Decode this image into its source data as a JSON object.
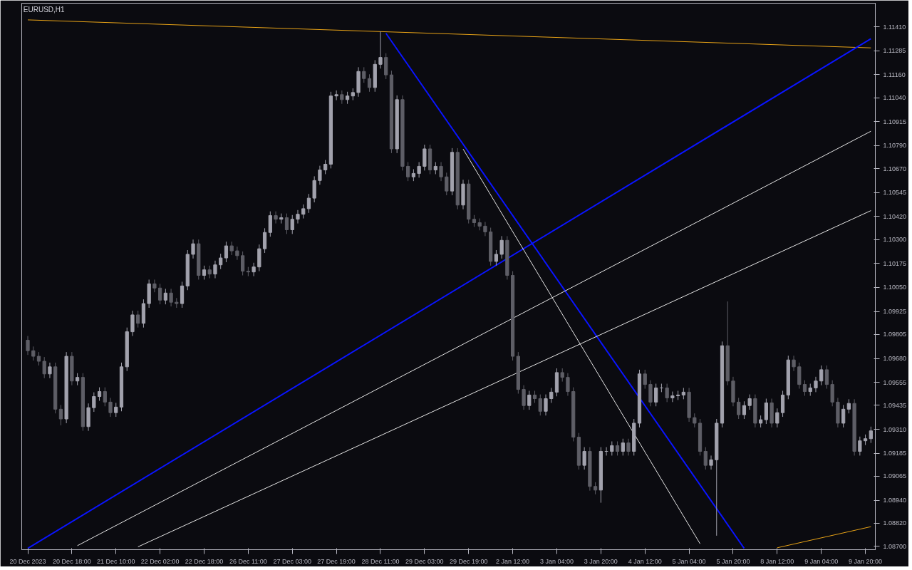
{
  "chart_data": {
    "type": "candlestick",
    "title": "EURUSD,H1",
    "categories": [
      "20 Dec 2023",
      null,
      null,
      null,
      null,
      null,
      null,
      null,
      "20 Dec 18:00",
      null,
      null,
      null,
      null,
      null,
      null,
      null,
      "21 Dec 10:00",
      null,
      null,
      null,
      null,
      null,
      null,
      null,
      "22 Dec 02:00",
      null,
      null,
      null,
      null,
      null,
      null,
      null,
      "22 Dec 18:00",
      null,
      null,
      null,
      null,
      null,
      null,
      null,
      "26 Dec 11:00",
      null,
      null,
      null,
      null,
      null,
      null,
      null,
      "27 Dec 03:00",
      null,
      null,
      null,
      null,
      null,
      null,
      null,
      "27 Dec 19:00",
      null,
      null,
      null,
      null,
      null,
      null,
      null,
      "28 Dec 11:00",
      null,
      null,
      null,
      null,
      null,
      null,
      null,
      "29 Dec 03:00",
      null,
      null,
      null,
      null,
      null,
      null,
      null,
      "29 Dec 19:00",
      null,
      null,
      null,
      null,
      null,
      null,
      null,
      "2 Jan 12:00",
      null,
      null,
      null,
      null,
      null,
      null,
      null,
      "3 Jan 04:00",
      null,
      null,
      null,
      null,
      null,
      null,
      null,
      "3 Jan 20:00",
      null,
      null,
      null,
      null,
      null,
      null,
      null,
      "4 Jan 12:00",
      null,
      null,
      null,
      null,
      null,
      null,
      null,
      "5 Jan 04:00",
      null,
      null,
      null,
      null,
      null,
      null,
      null,
      "5 Jan 20:00",
      null,
      null,
      null,
      null,
      null,
      null,
      null,
      "8 Jan 12:00",
      null,
      null,
      null,
      null,
      null,
      null,
      null,
      "9 Jan 04:00",
      null,
      null,
      null,
      null,
      null,
      null,
      null,
      "9 Jan 20:00",
      null
    ],
    "ohlc": [
      [
        1.09775,
        1.09797,
        1.09698,
        1.0972
      ],
      [
        1.0972,
        1.09742,
        1.09669,
        1.09691
      ],
      [
        1.09691,
        1.09713,
        1.09643,
        1.09665
      ],
      [
        1.09665,
        1.09687,
        1.09577,
        1.09599
      ],
      [
        1.09599,
        1.09658,
        1.09577,
        1.09636
      ],
      [
        1.09636,
        1.09658,
        1.09393,
        1.09415
      ],
      [
        1.09415,
        1.09437,
        1.09331,
        1.09364
      ],
      [
        1.09364,
        1.09713,
        1.09342,
        1.09691
      ],
      [
        1.09691,
        1.09713,
        1.0954,
        1.09562
      ],
      [
        1.09562,
        1.09603,
        1.0954,
        1.09581
      ],
      [
        1.09581,
        1.09603,
        1.09302,
        1.09324
      ],
      [
        1.09324,
        1.09445,
        1.09302,
        1.09423
      ],
      [
        1.09423,
        1.09503,
        1.09401,
        1.09481
      ],
      [
        1.09481,
        1.09529,
        1.09459,
        1.09507
      ],
      [
        1.09507,
        1.09529,
        1.0943,
        1.09452
      ],
      [
        1.09452,
        1.09474,
        1.09375,
        1.09397
      ],
      [
        1.09397,
        1.09448,
        1.09375,
        1.09426
      ],
      [
        1.09426,
        1.09658,
        1.09404,
        1.09636
      ],
      [
        1.09636,
        1.09841,
        1.09614,
        1.09819
      ],
      [
        1.09819,
        1.09929,
        1.09797,
        1.09907
      ],
      [
        1.09907,
        1.09929,
        1.09841,
        1.09863
      ],
      [
        1.09863,
        1.09988,
        1.09841,
        1.09966
      ],
      [
        1.09966,
        1.10091,
        1.09944,
        1.10069
      ],
      [
        1.10069,
        1.10091,
        1.10025,
        1.10047
      ],
      [
        1.10047,
        1.10069,
        1.09962,
        1.09984
      ],
      [
        1.09984,
        1.10043,
        1.09962,
        1.10021
      ],
      [
        1.10021,
        1.10043,
        1.09951,
        1.09973
      ],
      [
        1.09973,
        1.09995,
        1.09944,
        1.09966
      ],
      [
        1.09966,
        1.1008,
        1.09944,
        1.10058
      ],
      [
        1.10058,
        1.10245,
        1.10036,
        1.10223
      ],
      [
        1.10223,
        1.103,
        1.10201,
        1.10278
      ],
      [
        1.10278,
        1.103,
        1.10091,
        1.10113
      ],
      [
        1.10113,
        1.10164,
        1.10091,
        1.10142
      ],
      [
        1.10142,
        1.10164,
        1.10098,
        1.1012
      ],
      [
        1.1012,
        1.1019,
        1.10098,
        1.10168
      ],
      [
        1.10168,
        1.10226,
        1.10146,
        1.10204
      ],
      [
        1.10204,
        1.10289,
        1.10182,
        1.10267
      ],
      [
        1.10267,
        1.10289,
        1.10219,
        1.10241
      ],
      [
        1.10241,
        1.10263,
        1.10194,
        1.10216
      ],
      [
        1.10216,
        1.10238,
        1.10113,
        1.10135
      ],
      [
        1.10135,
        1.10157,
        1.10109,
        1.10131
      ],
      [
        1.10131,
        1.10179,
        1.10109,
        1.10157
      ],
      [
        1.10157,
        1.10274,
        1.10135,
        1.10252
      ],
      [
        1.10252,
        1.10359,
        1.1023,
        1.10337
      ],
      [
        1.10337,
        1.10447,
        1.10315,
        1.10425
      ],
      [
        1.10425,
        1.10447,
        1.10384,
        1.10406
      ],
      [
        1.10406,
        1.10436,
        1.10384,
        1.10414
      ],
      [
        1.10414,
        1.10436,
        1.10329,
        1.10351
      ],
      [
        1.10351,
        1.10428,
        1.10329,
        1.10406
      ],
      [
        1.10406,
        1.10454,
        1.10384,
        1.10432
      ],
      [
        1.10432,
        1.10483,
        1.1041,
        1.10461
      ],
      [
        1.10461,
        1.10538,
        1.10439,
        1.10516
      ],
      [
        1.10516,
        1.1063,
        1.10494,
        1.10608
      ],
      [
        1.10608,
        1.10685,
        1.10586,
        1.10663
      ],
      [
        1.10663,
        1.10715,
        1.10641,
        1.10693
      ],
      [
        1.10693,
        1.11071,
        1.10671,
        1.11049
      ],
      [
        1.11049,
        1.11078,
        1.11027,
        1.11056
      ],
      [
        1.11056,
        1.11078,
        1.11008,
        1.1103
      ],
      [
        1.1103,
        1.11071,
        1.11008,
        1.11049
      ],
      [
        1.11049,
        1.11089,
        1.11027,
        1.11067
      ],
      [
        1.11067,
        1.11199,
        1.11045,
        1.11177
      ],
      [
        1.11177,
        1.11199,
        1.11118,
        1.1114
      ],
      [
        1.1114,
        1.11162,
        1.11071,
        1.11093
      ],
      [
        1.11093,
        1.11236,
        1.11071,
        1.11214
      ],
      [
        1.11214,
        1.11386,
        1.11192,
        1.1125
      ],
      [
        1.1125,
        1.11272,
        1.11137,
        1.11159
      ],
      [
        1.11159,
        1.11181,
        1.10751,
        1.10773
      ],
      [
        1.10773,
        1.11052,
        1.10751,
        1.1103
      ],
      [
        1.1103,
        1.11052,
        1.1066,
        1.10682
      ],
      [
        1.10682,
        1.10704,
        1.10605,
        1.10627
      ],
      [
        1.10627,
        1.10667,
        1.10605,
        1.10645
      ],
      [
        1.10645,
        1.10704,
        1.10623,
        1.10682
      ],
      [
        1.10682,
        1.10795,
        1.1066,
        1.10773
      ],
      [
        1.10773,
        1.10795,
        1.10641,
        1.10663
      ],
      [
        1.10663,
        1.10704,
        1.10641,
        1.10682
      ],
      [
        1.10682,
        1.10704,
        1.10605,
        1.10627
      ],
      [
        1.10627,
        1.10649,
        1.10531,
        1.10553
      ],
      [
        1.10553,
        1.10777,
        1.10531,
        1.10755
      ],
      [
        1.10755,
        1.10777,
        1.10458,
        1.1048
      ],
      [
        1.1048,
        1.10612,
        1.10458,
        1.1059
      ],
      [
        1.1059,
        1.10612,
        1.10384,
        1.10406
      ],
      [
        1.10406,
        1.10428,
        1.10366,
        1.10388
      ],
      [
        1.10388,
        1.1041,
        1.10348,
        1.1037
      ],
      [
        1.1037,
        1.10392,
        1.10318,
        1.1034
      ],
      [
        1.1034,
        1.10362,
        1.10164,
        1.10186
      ],
      [
        1.10186,
        1.10245,
        1.10164,
        1.10223
      ],
      [
        1.10223,
        1.10318,
        1.10201,
        1.10296
      ],
      [
        1.10296,
        1.10318,
        1.10091,
        1.10113
      ],
      [
        1.10113,
        1.10135,
        1.09669,
        1.09691
      ],
      [
        1.09691,
        1.09713,
        1.09496,
        1.09518
      ],
      [
        1.09518,
        1.0954,
        1.09412,
        1.09434
      ],
      [
        1.09434,
        1.09511,
        1.09412,
        1.09489
      ],
      [
        1.09489,
        1.09511,
        1.09448,
        1.0947
      ],
      [
        1.0947,
        1.09492,
        1.09382,
        1.09404
      ],
      [
        1.09404,
        1.09492,
        1.09382,
        1.0947
      ],
      [
        1.0947,
        1.09526,
        1.09448,
        1.09504
      ],
      [
        1.09504,
        1.09628,
        1.09482,
        1.09606
      ],
      [
        1.09606,
        1.09628,
        1.09559,
        1.09581
      ],
      [
        1.09581,
        1.09603,
        1.09485,
        1.09507
      ],
      [
        1.09507,
        1.09529,
        1.09247,
        1.09269
      ],
      [
        1.09269,
        1.09291,
        1.091,
        1.09122
      ],
      [
        1.09122,
        1.09217,
        1.091,
        1.09195
      ],
      [
        1.09195,
        1.09217,
        1.0899,
        1.09012
      ],
      [
        1.09012,
        1.09034,
        1.08971,
        1.08993
      ],
      [
        1.08993,
        1.09217,
        1.08927,
        1.09195
      ],
      [
        1.09195,
        1.09217,
        1.09173,
        1.09195
      ],
      [
        1.09195,
        1.09247,
        1.09173,
        1.09225
      ],
      [
        1.09225,
        1.09247,
        1.09173,
        1.09195
      ],
      [
        1.09195,
        1.09261,
        1.09173,
        1.09239
      ],
      [
        1.09239,
        1.09261,
        1.09173,
        1.09195
      ],
      [
        1.09195,
        1.09364,
        1.09173,
        1.09342
      ],
      [
        1.09342,
        1.09621,
        1.0932,
        1.09599
      ],
      [
        1.09599,
        1.09621,
        1.09522,
        1.09544
      ],
      [
        1.09544,
        1.09566,
        1.0943,
        1.09452
      ],
      [
        1.09452,
        1.09548,
        1.0943,
        1.09526
      ],
      [
        1.09526,
        1.09548,
        1.09504,
        1.09526
      ],
      [
        1.09526,
        1.09548,
        1.09452,
        1.09474
      ],
      [
        1.09474,
        1.09507,
        1.09452,
        1.09485
      ],
      [
        1.09485,
        1.09511,
        1.09463,
        1.09489
      ],
      [
        1.09489,
        1.09526,
        1.09467,
        1.09504
      ],
      [
        1.09504,
        1.09526,
        1.09349,
        1.09371
      ],
      [
        1.09371,
        1.09393,
        1.0932,
        1.09342
      ],
      [
        1.09342,
        1.09364,
        1.09173,
        1.09195
      ],
      [
        1.09195,
        1.09217,
        1.091,
        1.09122
      ],
      [
        1.09122,
        1.09173,
        1.091,
        1.09151
      ],
      [
        1.09151,
        1.09364,
        1.08755,
        1.09342
      ],
      [
        1.09342,
        1.09768,
        1.0932,
        1.09746
      ],
      [
        1.09746,
        1.09977,
        1.0954,
        1.09562
      ],
      [
        1.09562,
        1.09584,
        1.0943,
        1.09452
      ],
      [
        1.09452,
        1.09474,
        1.09364,
        1.09386
      ],
      [
        1.09386,
        1.09456,
        1.09364,
        1.09434
      ],
      [
        1.09434,
        1.09492,
        1.09412,
        1.0947
      ],
      [
        1.0947,
        1.09492,
        1.0932,
        1.09342
      ],
      [
        1.09342,
        1.09382,
        1.0932,
        1.0936
      ],
      [
        1.0936,
        1.0947,
        1.09338,
        1.09448
      ],
      [
        1.09448,
        1.0947,
        1.0932,
        1.09342
      ],
      [
        1.09342,
        1.09419,
        1.0932,
        1.09397
      ],
      [
        1.09397,
        1.09511,
        1.09375,
        1.09489
      ],
      [
        1.09489,
        1.09694,
        1.09467,
        1.09672
      ],
      [
        1.09672,
        1.09694,
        1.09614,
        1.09636
      ],
      [
        1.09636,
        1.09658,
        1.09522,
        1.09544
      ],
      [
        1.09544,
        1.09566,
        1.09485,
        1.09507
      ],
      [
        1.09507,
        1.09548,
        1.09485,
        1.09526
      ],
      [
        1.09526,
        1.09584,
        1.09504,
        1.09562
      ],
      [
        1.09562,
        1.09643,
        1.0954,
        1.09621
      ],
      [
        1.09621,
        1.09643,
        1.09522,
        1.09544
      ],
      [
        1.09544,
        1.09566,
        1.0943,
        1.09452
      ],
      [
        1.09452,
        1.09474,
        1.0932,
        1.09342
      ],
      [
        1.09342,
        1.09437,
        1.0932,
        1.09415
      ],
      [
        1.09415,
        1.09467,
        1.09393,
        1.09445
      ],
      [
        1.09445,
        1.09467,
        1.09173,
        1.09195
      ],
      [
        1.09195,
        1.09272,
        1.09173,
        1.0925
      ],
      [
        1.0925,
        1.09283,
        1.09228,
        1.09261
      ],
      [
        1.09261,
        1.09324,
        1.09239,
        1.09302
      ]
    ],
    "series": [
      {
        "type": "line",
        "color": "#e8a317",
        "values": [
          1.11446,
          null,
          null,
          null,
          null,
          null,
          null,
          null,
          null,
          null,
          null,
          null,
          null,
          null,
          null,
          null,
          null,
          null,
          null,
          null,
          null,
          null,
          null,
          null,
          null,
          null,
          null,
          null,
          null,
          null,
          null,
          null,
          null,
          null,
          null,
          null,
          null,
          null,
          null,
          null,
          null,
          null,
          null,
          null,
          null,
          null,
          null,
          null,
          null,
          null,
          null,
          null,
          null,
          null,
          null,
          null,
          null,
          null,
          null,
          null,
          null,
          null,
          null,
          null,
          null,
          null,
          null,
          null,
          null,
          null,
          null,
          null,
          null,
          null,
          null,
          null,
          null,
          null,
          null,
          null,
          null,
          null,
          null,
          null,
          null,
          null,
          null,
          null,
          null,
          null,
          null,
          null,
          null,
          null,
          null,
          null,
          null,
          null,
          null,
          null,
          null,
          null,
          null,
          null,
          null,
          null,
          null,
          null,
          null,
          null,
          null,
          null,
          null,
          null,
          null,
          null,
          null,
          null,
          null,
          null,
          null,
          null,
          null,
          null,
          null,
          null,
          null,
          null,
          null,
          null,
          null,
          null,
          null,
          null,
          null,
          null,
          null,
          null,
          null,
          null,
          null,
          null,
          null,
          null,
          null,
          null,
          null,
          null,
          null,
          null,
          null,
          null,
          null,
          1.113
        ]
      },
      {
        "type": "line",
        "color": "#e8a317",
        "values": [
          null,
          null,
          null,
          null,
          null,
          null,
          null,
          null,
          null,
          null,
          null,
          null,
          null,
          null,
          null,
          null,
          null,
          null,
          null,
          null,
          null,
          null,
          null,
          null,
          null,
          null,
          null,
          null,
          null,
          null,
          null,
          null,
          null,
          null,
          null,
          null,
          null,
          null,
          null,
          null,
          null,
          null,
          null,
          null,
          null,
          null,
          null,
          null,
          null,
          null,
          null,
          null,
          null,
          null,
          null,
          null,
          null,
          null,
          null,
          null,
          null,
          null,
          null,
          null,
          null,
          null,
          null,
          null,
          null,
          null,
          null,
          null,
          null,
          null,
          null,
          null,
          null,
          null,
          null,
          null,
          null,
          null,
          null,
          null,
          null,
          null,
          null,
          null,
          null,
          null,
          null,
          null,
          null,
          null,
          null,
          null,
          null,
          null,
          null,
          null,
          null,
          null,
          null,
          null,
          null,
          null,
          null,
          null,
          null,
          null,
          null,
          null,
          null,
          null,
          null,
          null,
          null,
          null,
          null,
          null,
          null,
          null,
          null,
          null,
          null,
          null,
          null,
          null,
          null,
          null,
          null,
          null,
          null,
          null,
          null,
          null,
          1.08692,
          null,
          null,
          null,
          null,
          null,
          null,
          null,
          null,
          null,
          null,
          null,
          null,
          null,
          null,
          null,
          null,
          1.08802
        ]
      },
      {
        "type": "line",
        "color": "#0a14ff",
        "values": [
          1.08689,
          null,
          null,
          null,
          null,
          null,
          null,
          null,
          null,
          null,
          null,
          null,
          null,
          null,
          null,
          null,
          null,
          null,
          null,
          null,
          null,
          null,
          null,
          null,
          null,
          null,
          null,
          null,
          null,
          null,
          null,
          null,
          null,
          null,
          null,
          null,
          null,
          null,
          null,
          null,
          null,
          null,
          null,
          null,
          null,
          null,
          null,
          null,
          null,
          null,
          null,
          null,
          null,
          null,
          null,
          null,
          null,
          null,
          null,
          null,
          null,
          null,
          null,
          null,
          null,
          null,
          null,
          null,
          null,
          null,
          null,
          null,
          null,
          null,
          null,
          null,
          null,
          null,
          null,
          null,
          null,
          null,
          null,
          null,
          null,
          null,
          null,
          null,
          null,
          null,
          null,
          null,
          null,
          null,
          null,
          null,
          null,
          null,
          null,
          null,
          null,
          null,
          null,
          null,
          null,
          null,
          null,
          null,
          null,
          null,
          null,
          null,
          null,
          null,
          null,
          null,
          null,
          null,
          null,
          null,
          null,
          null,
          null,
          null,
          null,
          null,
          null,
          null,
          null,
          null,
          null,
          null,
          null,
          null,
          null,
          null,
          null,
          null,
          null,
          null,
          null,
          null,
          null,
          null,
          null,
          null,
          null,
          null,
          null,
          null,
          null,
          null,
          null,
          1.11348
        ]
      },
      {
        "type": "line",
        "color": "#0a14ff",
        "values": [
          null,
          null,
          null,
          null,
          null,
          null,
          null,
          null,
          null,
          null,
          null,
          null,
          null,
          null,
          null,
          null,
          null,
          null,
          null,
          null,
          null,
          null,
          null,
          null,
          null,
          null,
          null,
          null,
          null,
          null,
          null,
          null,
          null,
          null,
          null,
          null,
          null,
          null,
          null,
          null,
          null,
          null,
          null,
          null,
          null,
          null,
          null,
          null,
          null,
          null,
          null,
          null,
          null,
          null,
          null,
          null,
          null,
          null,
          null,
          null,
          null,
          null,
          null,
          null,
          null,
          1.11376,
          null,
          null,
          null,
          null,
          null,
          null,
          null,
          null,
          null,
          null,
          null,
          null,
          null,
          null,
          null,
          null,
          null,
          null,
          null,
          null,
          null,
          null,
          null,
          null,
          null,
          null,
          null,
          null,
          null,
          null,
          null,
          null,
          null,
          null,
          null,
          null,
          null,
          null,
          null,
          null,
          null,
          null,
          null,
          null,
          null,
          null,
          null,
          null,
          null,
          null,
          null,
          null,
          null,
          null,
          null,
          null,
          null,
          null,
          null,
          null,
          null,
          null,
          null,
          null,
          1.08689,
          null,
          null,
          null,
          null,
          null,
          null,
          null,
          null,
          null,
          null,
          null,
          null,
          null,
          null,
          null,
          null,
          null,
          null,
          null,
          null,
          null,
          null,
          null
        ]
      },
      {
        "type": "line",
        "color": "#e6e6e6",
        "values": [
          null,
          null,
          null,
          null,
          null,
          null,
          null,
          null,
          null,
          null,
          null,
          null,
          null,
          null,
          null,
          null,
          null,
          null,
          null,
          null,
          null,
          null,
          null,
          null,
          null,
          null,
          null,
          null,
          null,
          null,
          null,
          null,
          null,
          null,
          null,
          null,
          null,
          null,
          null,
          null,
          null,
          null,
          null,
          null,
          null,
          null,
          null,
          null,
          null,
          null,
          null,
          null,
          null,
          null,
          null,
          null,
          null,
          null,
          null,
          null,
          null,
          null,
          null,
          null,
          null,
          null,
          null,
          null,
          null,
          null,
          null,
          null,
          null,
          null,
          null,
          null,
          null,
          null,
          null,
          1.10772,
          null,
          null,
          null,
          null,
          null,
          null,
          null,
          null,
          null,
          null,
          null,
          null,
          null,
          null,
          null,
          null,
          null,
          null,
          null,
          null,
          null,
          null,
          null,
          null,
          null,
          null,
          null,
          null,
          null,
          null,
          null,
          null,
          null,
          null,
          null,
          null,
          null,
          null,
          null,
          null,
          null,
          null,
          1.08713,
          null,
          null,
          null,
          null,
          null,
          null,
          null,
          null,
          null,
          null,
          null,
          null,
          null,
          null,
          null,
          null,
          null,
          null,
          null,
          null,
          null,
          null,
          null,
          null,
          null,
          null,
          null,
          null,
          null,
          null,
          null
        ]
      },
      {
        "type": "line",
        "color": "#e6e6e6",
        "values": [
          null,
          null,
          null,
          null,
          null,
          null,
          null,
          null,
          null,
          1.08703,
          null,
          null,
          null,
          null,
          null,
          null,
          null,
          null,
          null,
          null,
          null,
          null,
          null,
          null,
          null,
          null,
          null,
          null,
          null,
          null,
          null,
          null,
          null,
          null,
          null,
          null,
          null,
          null,
          null,
          null,
          null,
          null,
          null,
          null,
          null,
          null,
          null,
          null,
          null,
          null,
          null,
          null,
          null,
          null,
          null,
          null,
          null,
          null,
          null,
          null,
          null,
          null,
          null,
          null,
          null,
          null,
          null,
          null,
          null,
          null,
          null,
          null,
          null,
          null,
          null,
          null,
          null,
          null,
          null,
          null,
          null,
          null,
          null,
          null,
          null,
          null,
          null,
          null,
          null,
          null,
          null,
          null,
          null,
          null,
          null,
          null,
          null,
          null,
          null,
          null,
          null,
          null,
          null,
          null,
          null,
          null,
          null,
          null,
          null,
          null,
          null,
          null,
          null,
          null,
          null,
          null,
          null,
          null,
          null,
          null,
          null,
          null,
          null,
          null,
          null,
          null,
          null,
          null,
          null,
          null,
          null,
          null,
          null,
          null,
          null,
          null,
          null,
          null,
          null,
          null,
          null,
          null,
          null,
          null,
          null,
          null,
          null,
          null,
          null,
          null,
          null,
          null,
          null,
          1.10865
        ]
      },
      {
        "type": "line",
        "color": "#e6e6e6",
        "values": [
          null,
          null,
          null,
          null,
          null,
          null,
          null,
          null,
          null,
          null,
          null,
          null,
          null,
          null,
          null,
          null,
          null,
          null,
          null,
          null,
          1.08697,
          null,
          null,
          null,
          null,
          null,
          null,
          null,
          null,
          null,
          null,
          null,
          null,
          null,
          null,
          null,
          null,
          null,
          null,
          null,
          null,
          null,
          null,
          null,
          null,
          null,
          null,
          null,
          null,
          null,
          null,
          null,
          null,
          null,
          null,
          null,
          null,
          null,
          null,
          null,
          null,
          null,
          null,
          null,
          null,
          null,
          null,
          null,
          null,
          null,
          null,
          null,
          null,
          null,
          null,
          null,
          null,
          null,
          null,
          null,
          null,
          null,
          null,
          null,
          null,
          null,
          null,
          null,
          null,
          null,
          null,
          null,
          null,
          null,
          null,
          null,
          null,
          null,
          null,
          null,
          null,
          null,
          null,
          null,
          null,
          null,
          null,
          null,
          null,
          null,
          null,
          null,
          null,
          null,
          null,
          null,
          null,
          null,
          null,
          null,
          null,
          null,
          null,
          null,
          null,
          null,
          null,
          null,
          null,
          null,
          null,
          null,
          null,
          null,
          null,
          null,
          null,
          null,
          null,
          null,
          null,
          null,
          null,
          null,
          null,
          null,
          null,
          null,
          null,
          null,
          null,
          null,
          null,
          1.10451
        ]
      }
    ],
    "ylim": [
      1.08682,
      1.11533
    ],
    "yticks": [
      {
        "value": 1.087,
        "label": "1.08700"
      },
      {
        "value": 1.0882,
        "label": "1.08820"
      },
      {
        "value": 1.0894,
        "label": "1.08940"
      },
      {
        "value": 1.09065,
        "label": "1.09065"
      },
      {
        "value": 1.09185,
        "label": "1.09185"
      },
      {
        "value": 1.0931,
        "label": "1.09310"
      },
      {
        "value": 1.09435,
        "label": "1.09435"
      },
      {
        "value": 1.09555,
        "label": "1.09555"
      },
      {
        "value": 1.0968,
        "label": "1.09680"
      },
      {
        "value": 1.09805,
        "label": "1.09805"
      },
      {
        "value": 1.09925,
        "label": "1.09925"
      },
      {
        "value": 1.1005,
        "label": "1.10050"
      },
      {
        "value": 1.10175,
        "label": "1.10175"
      },
      {
        "value": 1.103,
        "label": "1.10300"
      },
      {
        "value": 1.1042,
        "label": "1.10420"
      },
      {
        "value": 1.10545,
        "label": "1.10545"
      },
      {
        "value": 1.1067,
        "label": "1.10670"
      },
      {
        "value": 1.1079,
        "label": "1.10790"
      },
      {
        "value": 1.10915,
        "label": "1.10915"
      },
      {
        "value": 1.1104,
        "label": "1.11040"
      },
      {
        "value": 1.1116,
        "label": "1.11160"
      },
      {
        "value": 1.11285,
        "label": "1.11285"
      },
      {
        "value": 1.1141,
        "label": "1.11410"
      }
    ],
    "grid": false
  }
}
